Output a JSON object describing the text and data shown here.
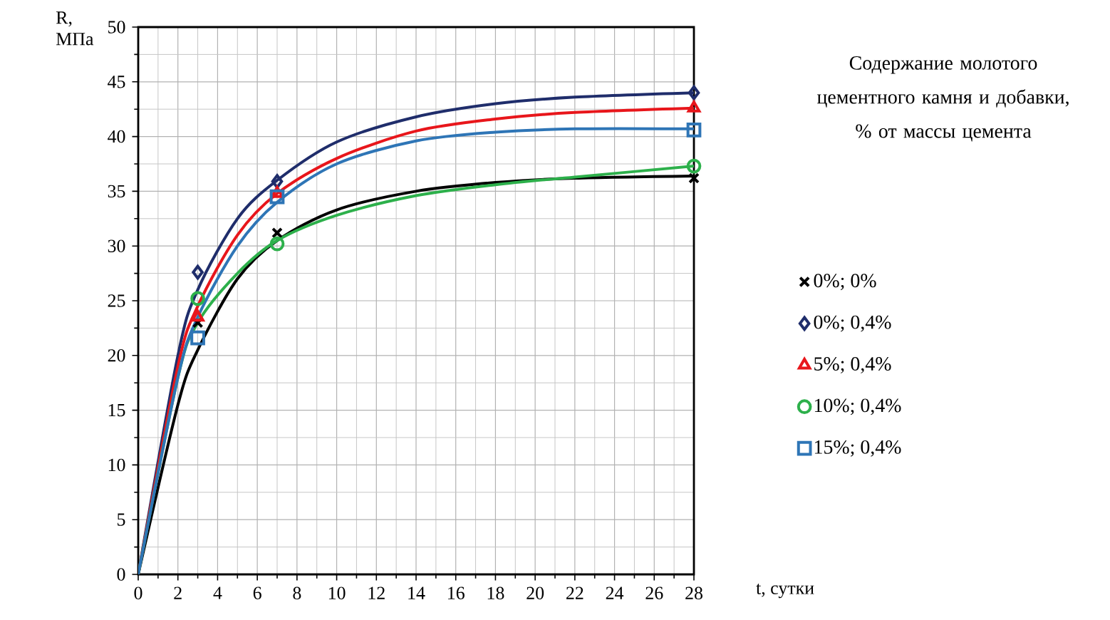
{
  "chart_data": {
    "type": "scatter",
    "xlabel": "t, сутки",
    "ylabel": "R, МПа",
    "legend_title": "Содержание молотого цементного камня и добавки, % от массы цемента",
    "xlim": [
      0,
      28
    ],
    "ylim": [
      0,
      50
    ],
    "xticks": [
      0,
      2,
      4,
      6,
      8,
      10,
      12,
      14,
      16,
      18,
      20,
      22,
      24,
      26,
      28
    ],
    "yticks": [
      0,
      5,
      10,
      15,
      20,
      25,
      30,
      35,
      40,
      45,
      50
    ],
    "grid": true,
    "legend": "right",
    "series": [
      {
        "type": "line",
        "marker": "none",
        "color": "#000000",
        "x": [
          0,
          2,
          3,
          5,
          7,
          10,
          14,
          18,
          22,
          28
        ],
        "values": [
          0,
          15.5,
          20.5,
          27,
          30.5,
          33.3,
          35,
          35.8,
          36.2,
          36.4
        ]
      },
      {
        "type": "line",
        "marker": "none",
        "color": "#1f2d6b",
        "x": [
          0,
          2,
          3,
          5,
          7,
          10,
          14,
          18,
          22,
          28
        ],
        "values": [
          0,
          20,
          26,
          32.5,
          36,
          39.5,
          41.8,
          43,
          43.6,
          44
        ]
      },
      {
        "type": "line",
        "marker": "none",
        "color": "#e8161b",
        "x": [
          0,
          2,
          3,
          5,
          7,
          10,
          14,
          18,
          22,
          28
        ],
        "values": [
          0,
          19,
          24.5,
          31,
          34.8,
          38,
          40.5,
          41.6,
          42.2,
          42.6
        ]
      },
      {
        "type": "line",
        "marker": "none",
        "color": "#2db04b",
        "x": [
          0,
          2,
          3,
          5,
          7,
          10,
          14,
          18,
          22,
          28
        ],
        "values": [
          0,
          18,
          23,
          27.5,
          30.5,
          32.8,
          34.6,
          35.6,
          36.3,
          37.3
        ]
      },
      {
        "type": "line",
        "marker": "none",
        "color": "#2e75b6",
        "x": [
          0,
          2,
          3,
          5,
          7,
          10,
          14,
          18,
          22,
          28
        ],
        "values": [
          0,
          18,
          23.5,
          30,
          34,
          37.5,
          39.6,
          40.4,
          40.7,
          40.7
        ]
      },
      {
        "marker": "cross",
        "name": "0%; 0%",
        "color": "#000000",
        "x": [
          3,
          7,
          28
        ],
        "values": [
          23,
          31.2,
          36.2
        ]
      },
      {
        "marker": "diamond",
        "name": "0%; 0,4%",
        "color": "#1f2d6b",
        "x": [
          3,
          7,
          28
        ],
        "values": [
          27.6,
          35.9,
          44
        ]
      },
      {
        "marker": "triangle",
        "name": "5%; 0,4%",
        "color": "#e8161b",
        "x": [
          3,
          7,
          28
        ],
        "values": [
          23.5,
          34.8,
          42.6
        ]
      },
      {
        "marker": "circle",
        "name": "10%; 0,4%",
        "color": "#2db04b",
        "x": [
          3,
          7,
          28
        ],
        "values": [
          25.2,
          30.2,
          37.3
        ]
      },
      {
        "marker": "square",
        "name": "15%; 0,4%",
        "color": "#2e75b6",
        "x": [
          3,
          7,
          28
        ],
        "values": [
          21.6,
          34.5,
          40.6
        ]
      }
    ]
  }
}
